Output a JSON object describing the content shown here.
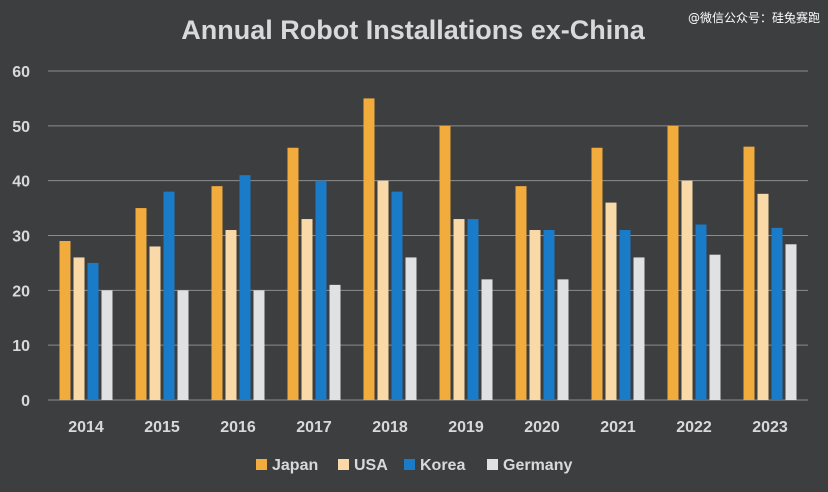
{
  "watermark_text": "@微信公众号：硅兔赛跑",
  "colors": {
    "background": "#3d3e40",
    "japan": "#f2ac3d",
    "usa": "#f9d9a8",
    "korea": "#1a7bc9",
    "germany": "#dfe1e3",
    "text": "#d9d9d9",
    "grid": "#8c8c8c"
  },
  "chart_data": {
    "type": "bar",
    "title": "Annual Robot Installations ex-China",
    "xlabel": "",
    "ylabel": "",
    "ylim": [
      0,
      60
    ],
    "yticks": [
      0,
      10,
      20,
      30,
      40,
      50,
      60
    ],
    "grid": true,
    "legend_position": "bottom",
    "categories": [
      "2014",
      "2015",
      "2016",
      "2017",
      "2018",
      "2019",
      "2020",
      "2021",
      "2022",
      "2023"
    ],
    "series": [
      {
        "name": "Japan",
        "values": [
          29,
          35,
          39,
          46,
          55,
          50,
          39,
          46,
          50,
          46.2
        ]
      },
      {
        "name": "USA",
        "values": [
          26,
          28,
          31,
          33,
          40,
          33,
          31,
          36,
          40,
          37.6
        ]
      },
      {
        "name": "Korea",
        "values": [
          25,
          38,
          41,
          40,
          38,
          33,
          31,
          31,
          32,
          31.4
        ]
      },
      {
        "name": "Germany",
        "values": [
          20,
          20,
          20,
          21,
          26,
          22,
          22,
          26,
          26.5,
          28.4
        ]
      }
    ]
  }
}
